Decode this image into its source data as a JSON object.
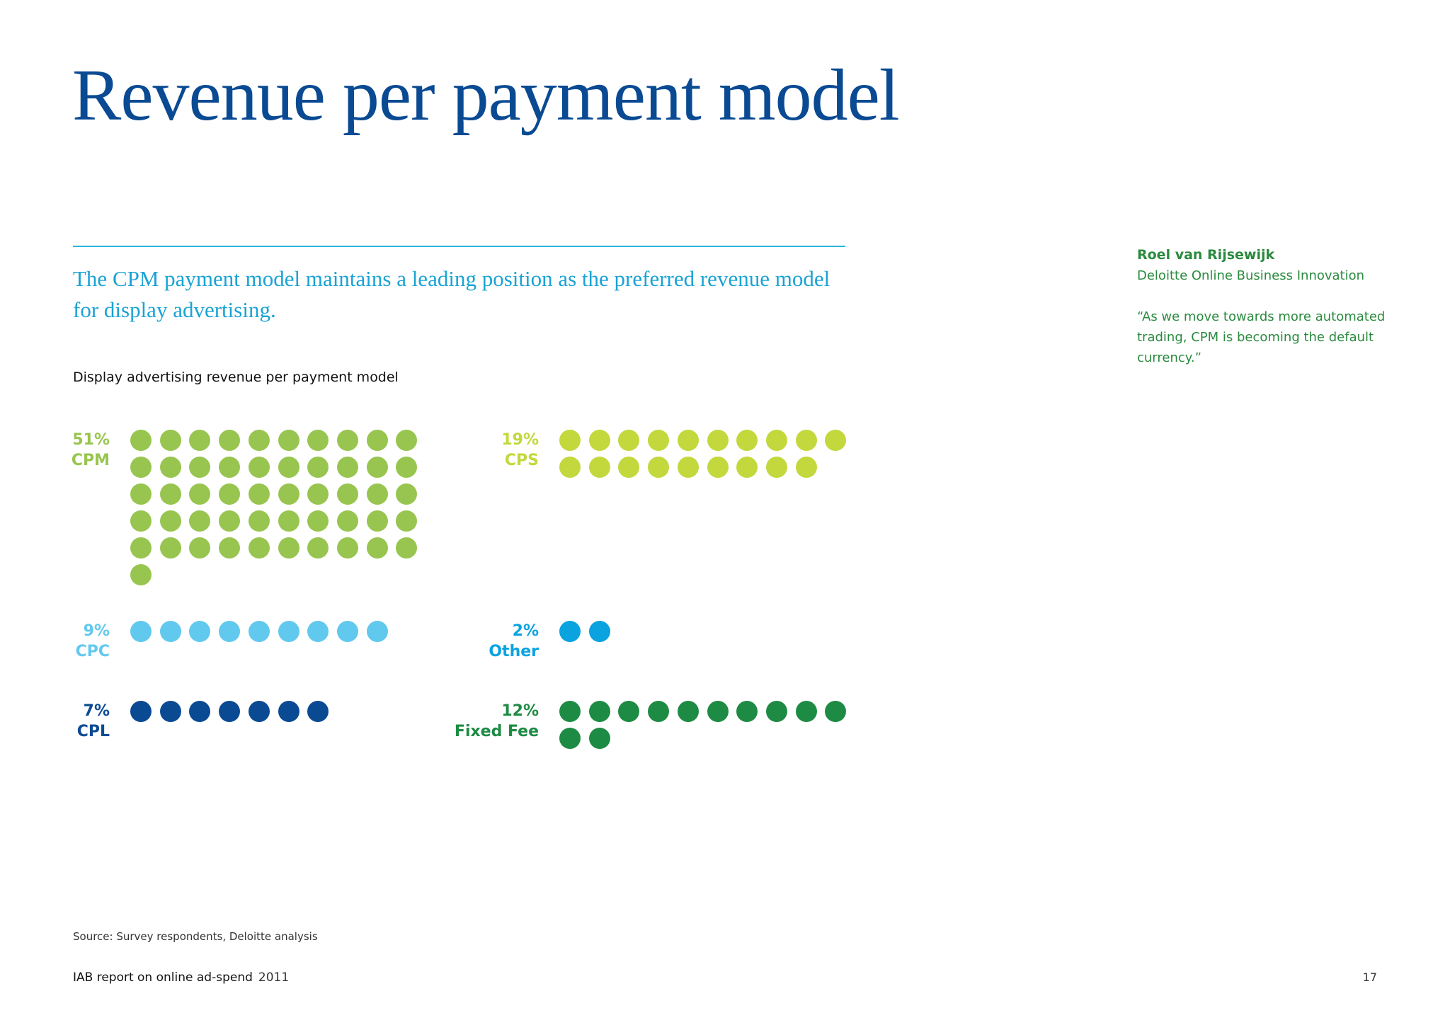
{
  "title": "Revenue per payment model",
  "subtitle": "The CPM payment model maintains a leading position as the preferred revenue model for display advertising.",
  "chart_data": {
    "type": "dot-matrix",
    "title": "Display advertising revenue per payment model",
    "unit": "%",
    "dot_value": 1,
    "groups": [
      {
        "key": "cpm",
        "name": "CPM",
        "value": 51,
        "value_label": "51%",
        "color": "#98c54f"
      },
      {
        "key": "cps",
        "name": "CPS",
        "value": 19,
        "value_label": "19%",
        "color": "#c3d83c"
      },
      {
        "key": "cpc",
        "name": "CPC",
        "value": 9,
        "value_label": "9%",
        "color": "#62c9ee"
      },
      {
        "key": "other",
        "name": "Other",
        "value": 2,
        "value_label": "2%",
        "color": "#0aa3e0"
      },
      {
        "key": "cpl",
        "name": "CPL",
        "value": 7,
        "value_label": "7%",
        "color": "#0a4a93"
      },
      {
        "key": "fixed_fee",
        "name": "Fixed Fee",
        "value": 12,
        "value_label": "12%",
        "color": "#1e8b44"
      }
    ]
  },
  "quote": {
    "name": "Roel van Rijsewijk",
    "organization": "Deloitte Online Business Innovation",
    "text": "“As we move towards more automated trading, CPM is becoming the default currency.”"
  },
  "source": "Source: Survey respondents, Deloitte analysis",
  "footer": {
    "report_title": "IAB report on online ad-spend",
    "year": "2011",
    "page_number": "17"
  }
}
